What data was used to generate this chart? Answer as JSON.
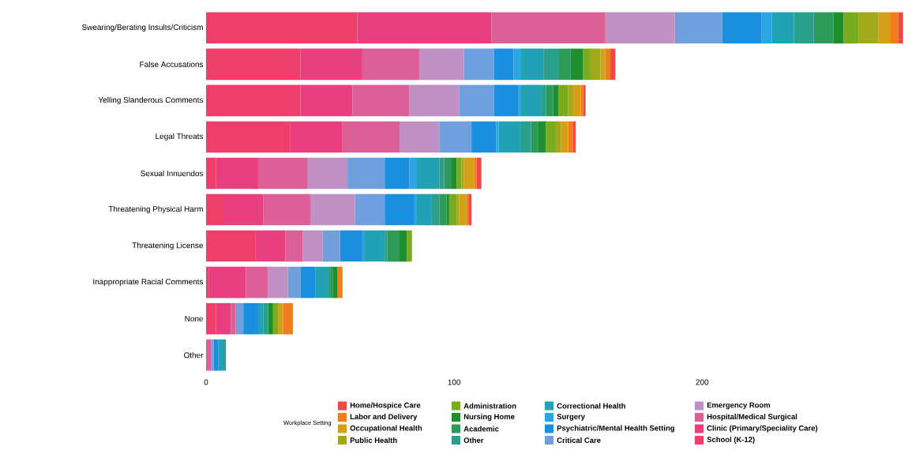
{
  "chart_data": {
    "type": "bar",
    "orientation": "horizontal",
    "stacked": true,
    "categories": [
      "Swearing/Berating Insults/Criticism",
      "False Accusations",
      "Yelling Slanderous Comments",
      "Legal Threats",
      "Sexual Innuendos",
      "Threatening Physical Harm",
      "Threatening License",
      "Inappropriate Racial Comments",
      "None",
      "Other"
    ],
    "xlim": [
      0,
      283
    ],
    "xticks": [
      0,
      100,
      200
    ],
    "grid": false,
    "legend": "bottom",
    "legend_title": "Workplace Setting",
    "series": [
      {
        "name": "School (K-12)",
        "color": "#ee3f6a",
        "values": [
          61,
          38,
          38,
          34,
          4,
          7,
          20,
          1,
          4,
          0
        ]
      },
      {
        "name": "Clinic (Primary/Speciality Care)",
        "color": "#e8407e",
        "values": [
          54,
          25,
          21,
          21,
          17,
          16,
          12,
          15,
          6,
          0
        ]
      },
      {
        "name": "Hospital/Medical Surgical",
        "color": "#dc6097",
        "values": [
          46,
          23,
          23,
          23,
          20,
          19,
          7,
          9,
          2,
          2
        ]
      },
      {
        "name": "Emergency Room",
        "color": "#c08fc4",
        "values": [
          28,
          18,
          20,
          16,
          16,
          18,
          8,
          8,
          0,
          0
        ]
      },
      {
        "name": "Critical Care",
        "color": "#6f9fdc",
        "values": [
          19,
          12,
          14,
          13,
          15,
          12,
          7,
          5,
          3,
          1
        ]
      },
      {
        "name": "Psychiatric/Mental Health Setting",
        "color": "#1a8fe0",
        "values": [
          16,
          8,
          10,
          10,
          10,
          12,
          9,
          6,
          6,
          2
        ]
      },
      {
        "name": "Surgery",
        "color": "#2aa6e6",
        "values": [
          4,
          3,
          1,
          1,
          3,
          1,
          1,
          0,
          0,
          0
        ]
      },
      {
        "name": "Correctional Health",
        "color": "#22a0b4",
        "values": [
          9,
          9,
          8,
          9,
          9,
          6,
          8,
          5,
          2,
          2
        ]
      },
      {
        "name": "Other",
        "color": "#2aa08c",
        "values": [
          8,
          6,
          2,
          4,
          2,
          3,
          1,
          1,
          2,
          1
        ]
      },
      {
        "name": "Academic",
        "color": "#2e9a5a",
        "values": [
          8,
          5,
          3,
          3,
          3,
          3,
          5,
          1,
          0,
          0
        ]
      },
      {
        "name": "Nursing Home",
        "color": "#1f8f2e",
        "values": [
          4,
          5,
          2,
          3,
          2,
          1,
          3,
          2,
          2,
          0
        ]
      },
      {
        "name": "Administration",
        "color": "#7aab1e",
        "values": [
          6,
          3,
          4,
          4,
          2,
          3,
          2,
          0,
          2,
          0
        ]
      },
      {
        "name": "Public Health",
        "color": "#a0a81c",
        "values": [
          8,
          4,
          2,
          2,
          1,
          1,
          0,
          0,
          0,
          0
        ]
      },
      {
        "name": "Occupational Health",
        "color": "#d4a018",
        "values": [
          5,
          2,
          3,
          3,
          4,
          3,
          0,
          0,
          2,
          0
        ]
      },
      {
        "name": "Labor and Delivery",
        "color": "#f07d1a",
        "values": [
          3,
          2,
          1,
          2,
          1,
          1,
          0,
          2,
          4,
          0
        ]
      },
      {
        "name": "Home/Hospice Care",
        "color": "#f04848",
        "values": [
          2,
          2,
          1,
          1,
          2,
          1,
          0,
          0,
          0,
          0
        ]
      }
    ]
  }
}
